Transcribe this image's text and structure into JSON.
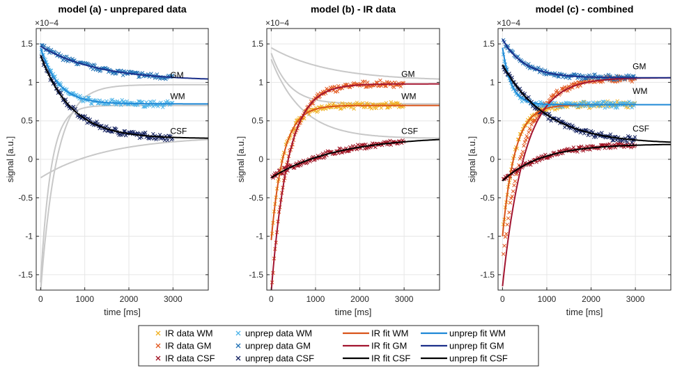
{
  "chart_data": [
    {
      "type": "scatter",
      "title": "model (a) - unprepared data",
      "xlabel": "time [ms]",
      "ylabel": "signal [a.u.]",
      "y_exponent": "×10−4",
      "xlim": [
        -100,
        3800
      ],
      "ylim": [
        -1.7,
        1.7
      ],
      "xticks": [
        0,
        1000,
        2000,
        3000
      ],
      "yticks": [
        -1.5,
        -1,
        -0.5,
        0,
        0.5,
        1,
        1.5
      ],
      "xticklabels": [
        "0",
        "1000",
        "2000",
        "3000"
      ],
      "yticklabels": [
        "-1.5",
        "-1",
        "-0.5",
        "0",
        "0.5",
        "1",
        "1.5"
      ],
      "annotations": [
        {
          "text": "GM",
          "x": 3000,
          "y": 1.06
        },
        {
          "text": "WM",
          "x": 3000,
          "y": 0.78
        },
        {
          "text": "CSF",
          "x": 3000,
          "y": 0.33
        }
      ],
      "series": [
        {
          "name": "unprep data WM",
          "kind": "data",
          "marker": "x",
          "color": "#4db3e8",
          "model": {
            "start": 1.45,
            "end": 0.72,
            "tau": 400
          }
        },
        {
          "name": "unprep data GM",
          "kind": "data",
          "marker": "x",
          "color": "#1f6fb4",
          "model": {
            "start": 1.47,
            "end": 1.02,
            "tau": 1300
          }
        },
        {
          "name": "unprep data CSF",
          "kind": "data",
          "marker": "x",
          "color": "#12205e",
          "model": {
            "start": 1.35,
            "end": 0.27,
            "tau": 700
          }
        },
        {
          "name": "unprep fit WM",
          "kind": "fit",
          "color": "#1e88d6",
          "model": {
            "start": 1.45,
            "end": 0.72,
            "tau": 400
          }
        },
        {
          "name": "unprep fit GM",
          "kind": "fit",
          "color": "#1b2f8a",
          "model": {
            "start": 1.47,
            "end": 1.02,
            "tau": 1300
          }
        },
        {
          "name": "unprep fit CSF",
          "kind": "fit",
          "color": "#000000",
          "model": {
            "start": 1.35,
            "end": 0.27,
            "tau": 700
          }
        },
        {
          "name": "IR fit WM",
          "kind": "ghost",
          "color": "#c8c8c8",
          "model": {
            "start": -1.6,
            "end": 0.7,
            "tau": 230
          }
        },
        {
          "name": "IR fit GM",
          "kind": "ghost",
          "color": "#c8c8c8",
          "model": {
            "start": -1.72,
            "end": 0.97,
            "tau": 360
          }
        },
        {
          "name": "IR fit CSF",
          "kind": "ghost",
          "color": "#c8c8c8",
          "model": {
            "start": -0.24,
            "end": 0.3,
            "tau": 1500
          }
        }
      ]
    },
    {
      "type": "scatter",
      "title": "model (b) - IR data",
      "xlabel": "time [ms]",
      "ylabel": "signal [a.u.]",
      "y_exponent": "×10−4",
      "xlim": [
        -100,
        3800
      ],
      "ylim": [
        -1.7,
        1.7
      ],
      "xticks": [
        0,
        1000,
        2000,
        3000
      ],
      "yticks": [
        -1.5,
        -1,
        -0.5,
        0,
        0.5,
        1,
        1.5
      ],
      "xticklabels": [
        "0",
        "1000",
        "2000",
        "3000"
      ],
      "yticklabels": [
        "-1.5",
        "-1",
        "-0.5",
        "0",
        "0.5",
        "1",
        "1.5"
      ],
      "annotations": [
        {
          "text": "GM",
          "x": 3000,
          "y": 1.07
        },
        {
          "text": "WM",
          "x": 3000,
          "y": 0.78
        },
        {
          "text": "CSF",
          "x": 3000,
          "y": 0.33
        }
      ],
      "series": [
        {
          "name": "IR data WM",
          "kind": "data",
          "marker": "x",
          "color": "#f0b020",
          "model": {
            "start": -1.05,
            "end": 0.7,
            "tau": 280
          }
        },
        {
          "name": "IR data GM",
          "kind": "data",
          "marker": "x",
          "color": "#e2571e",
          "model": {
            "start": -1.72,
            "end": 0.98,
            "tau": 380
          }
        },
        {
          "name": "IR data CSF",
          "kind": "data",
          "marker": "x",
          "color": "#9e1020",
          "model": {
            "start": -0.24,
            "end": 0.3,
            "tau": 1500
          }
        },
        {
          "name": "IR fit WM",
          "kind": "fit",
          "color": "#d95319",
          "model": {
            "start": -1.05,
            "end": 0.7,
            "tau": 280
          }
        },
        {
          "name": "IR fit GM",
          "kind": "fit",
          "color": "#a2142f",
          "model": {
            "start": -1.72,
            "end": 0.98,
            "tau": 380
          }
        },
        {
          "name": "IR fit CSF",
          "kind": "fit",
          "color": "#000000",
          "model": {
            "start": -0.24,
            "end": 0.3,
            "tau": 1500
          }
        },
        {
          "name": "unprep fit WM",
          "kind": "ghost",
          "color": "#c8c8c8",
          "model": {
            "start": 1.38,
            "end": 0.72,
            "tau": 400
          }
        },
        {
          "name": "unprep fit GM",
          "kind": "ghost",
          "color": "#c8c8c8",
          "model": {
            "start": 1.45,
            "end": 1.02,
            "tau": 1300
          }
        },
        {
          "name": "unprep fit CSF",
          "kind": "ghost",
          "color": "#c8c8c8",
          "model": {
            "start": 1.3,
            "end": 0.27,
            "tau": 700
          }
        }
      ]
    },
    {
      "type": "scatter",
      "title": "model (c) - combined",
      "xlabel": "time [ms]",
      "ylabel": "signal [a.u.]",
      "y_exponent": "×10−4",
      "xlim": [
        -100,
        3800
      ],
      "ylim": [
        -1.7,
        1.7
      ],
      "xticks": [
        0,
        1000,
        2000,
        3000
      ],
      "yticks": [
        -1.5,
        -1,
        -0.5,
        0,
        0.5,
        1,
        1.5
      ],
      "xticklabels": [
        "0",
        "1000",
        "2000",
        "3000"
      ],
      "yticklabels": [
        "-1.5",
        "-1",
        "-0.5",
        "0",
        "0.5",
        "1",
        "1.5"
      ],
      "annotations": [
        {
          "text": "GM",
          "x": 3000,
          "y": 1.17
        },
        {
          "text": "WM",
          "x": 3000,
          "y": 0.85
        },
        {
          "text": "CSF",
          "x": 3000,
          "y": 0.36
        }
      ],
      "series": [
        {
          "name": "IR data WM",
          "kind": "data",
          "marker": "x",
          "color": "#f0b020",
          "model": {
            "start": -1.0,
            "end": 0.71,
            "tau": 280
          }
        },
        {
          "name": "IR data GM",
          "kind": "data",
          "marker": "x",
          "color": "#e2571e",
          "model": {
            "start": -1.3,
            "end": 1.06,
            "tau": 500
          }
        },
        {
          "name": "IR data CSF",
          "kind": "data",
          "marker": "x",
          "color": "#9e1020",
          "model": {
            "start": -0.28,
            "end": 0.2,
            "tau": 900
          }
        },
        {
          "name": "unprep data WM",
          "kind": "data",
          "marker": "x",
          "color": "#4db3e8",
          "model": {
            "start": 1.45,
            "end": 0.71,
            "tau": 200
          }
        },
        {
          "name": "unprep data GM",
          "kind": "data",
          "marker": "x",
          "color": "#1f6fb4",
          "model": {
            "start": 1.56,
            "end": 1.06,
            "tau": 500
          }
        },
        {
          "name": "unprep data CSF",
          "kind": "data",
          "marker": "x",
          "color": "#12205e",
          "model": {
            "start": 1.23,
            "end": 0.2,
            "tau": 1000
          }
        },
        {
          "name": "IR fit WM",
          "kind": "fit",
          "color": "#d95319",
          "model": {
            "start": -1.0,
            "end": 0.71,
            "tau": 280
          }
        },
        {
          "name": "IR fit GM",
          "kind": "fit",
          "color": "#a2142f",
          "model": {
            "start": -1.65,
            "end": 1.06,
            "tau": 500
          }
        },
        {
          "name": "IR fit CSF",
          "kind": "fit",
          "color": "#000000",
          "model": {
            "start": -0.28,
            "end": 0.2,
            "tau": 900
          }
        },
        {
          "name": "unprep fit WM",
          "kind": "fit",
          "color": "#1e88d6",
          "model": {
            "start": 1.45,
            "end": 0.71,
            "tau": 200
          }
        },
        {
          "name": "unprep fit GM",
          "kind": "fit",
          "color": "#1b2f8a",
          "model": {
            "start": 1.56,
            "end": 1.06,
            "tau": 500
          }
        },
        {
          "name": "unprep fit CSF",
          "kind": "fit",
          "color": "#000000",
          "model": {
            "start": 1.23,
            "end": 0.2,
            "tau": 1000
          }
        }
      ]
    }
  ],
  "legend": {
    "entries": [
      {
        "label": "IR data WM",
        "kind": "marker",
        "color": "#f0b020"
      },
      {
        "label": "IR data GM",
        "kind": "marker",
        "color": "#e2571e"
      },
      {
        "label": "IR data CSF",
        "kind": "marker",
        "color": "#9e1020"
      },
      {
        "label": "unprep data WM",
        "kind": "marker",
        "color": "#4db3e8"
      },
      {
        "label": "unprep data GM",
        "kind": "marker",
        "color": "#1f6fb4"
      },
      {
        "label": "unprep data CSF",
        "kind": "marker",
        "color": "#12205e"
      },
      {
        "label": "IR fit WM",
        "kind": "line",
        "color": "#d95319"
      },
      {
        "label": "IR fit GM",
        "kind": "line",
        "color": "#a2142f"
      },
      {
        "label": "IR fit CSF",
        "kind": "line",
        "color": "#000000"
      },
      {
        "label": "unprep fit WM",
        "kind": "line",
        "color": "#1e88d6"
      },
      {
        "label": "unprep fit GM",
        "kind": "line",
        "color": "#1b2f8a"
      },
      {
        "label": "unprep fit CSF",
        "kind": "line",
        "color": "#000000"
      }
    ]
  }
}
